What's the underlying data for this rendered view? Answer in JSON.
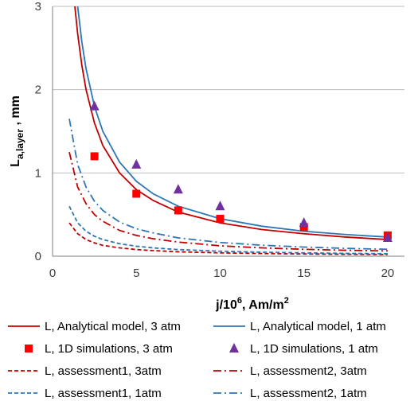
{
  "chart_data": {
    "type": "line",
    "xlabel_main": "j/10",
    "xlabel_sup": "6",
    "xlabel_rest": ", Am/m",
    "xlabel_sup2": "2",
    "ylabel_main": "L",
    "ylabel_sub": "a,layer",
    "ylabel_rest": " , mm",
    "xlim": [
      0,
      21
    ],
    "ylim": [
      0,
      3
    ],
    "xticks": [
      "0",
      "5",
      "10",
      "15",
      "20"
    ],
    "xtick_values": [
      0,
      5,
      10,
      15,
      20
    ],
    "yticks": [
      "0",
      "1",
      "2",
      "3"
    ],
    "ytick_values": [
      0,
      1,
      2,
      3
    ],
    "grid": "horizontal",
    "legend_position": "bottom",
    "series": [
      {
        "name": "L, Analytical model, 3 atm",
        "style": "solid",
        "color": "#c00000",
        "x": [
          1.33,
          1.5,
          1.75,
          2,
          2.5,
          3,
          4,
          5,
          6,
          7.5,
          10,
          12.5,
          15,
          17.5,
          20
        ],
        "y": [
          3.0,
          2.67,
          2.29,
          2.0,
          1.6,
          1.33,
          1.0,
          0.8,
          0.67,
          0.53,
          0.4,
          0.32,
          0.27,
          0.23,
          0.2
        ]
      },
      {
        "name": "L, Analytical model, 1 atm",
        "style": "solid",
        "color": "#2e75b6",
        "x": [
          1.5,
          1.75,
          2,
          2.5,
          3,
          4,
          5,
          6,
          7.5,
          10,
          12.5,
          15,
          17.5,
          20
        ],
        "y": [
          3.0,
          2.57,
          2.25,
          1.8,
          1.5,
          1.13,
          0.9,
          0.75,
          0.6,
          0.45,
          0.36,
          0.3,
          0.26,
          0.23
        ]
      },
      {
        "name": "L, 1D simulations, 3 atm",
        "style": "marker-square",
        "color": "#ff0000",
        "x": [
          2.5,
          5,
          7.5,
          10,
          15,
          20
        ],
        "y": [
          1.2,
          0.75,
          0.55,
          0.45,
          0.35,
          0.25
        ]
      },
      {
        "name": "L, 1D simulations, 1 atm",
        "style": "marker-triangle",
        "color": "#7030a0",
        "x": [
          2.5,
          5,
          7.5,
          10,
          15,
          20
        ],
        "y": [
          1.8,
          1.1,
          0.8,
          0.6,
          0.4,
          0.22
        ]
      },
      {
        "name": "L, assessment1, 3atm",
        "style": "dashed",
        "color": "#c00000",
        "x": [
          1,
          1.5,
          2,
          2.5,
          3,
          4,
          5,
          6,
          7.5,
          10,
          12.5,
          15,
          17.5,
          20
        ],
        "y": [
          0.4,
          0.27,
          0.2,
          0.16,
          0.13,
          0.1,
          0.08,
          0.067,
          0.053,
          0.04,
          0.032,
          0.027,
          0.023,
          0.02
        ]
      },
      {
        "name": "L, assessment2, 3atm",
        "style": "dashdot",
        "color": "#c00000",
        "x": [
          1,
          1.5,
          2,
          2.5,
          3,
          4,
          5,
          6,
          7.5,
          10,
          12.5,
          15,
          17.5,
          20
        ],
        "y": [
          1.25,
          0.83,
          0.63,
          0.5,
          0.42,
          0.31,
          0.25,
          0.21,
          0.17,
          0.125,
          0.1,
          0.083,
          0.071,
          0.063
        ]
      },
      {
        "name": "L, assessment1, 1atm",
        "style": "dashed",
        "color": "#2e75b6",
        "x": [
          1,
          1.5,
          2,
          2.5,
          3,
          4,
          5,
          6,
          7.5,
          10,
          12.5,
          15,
          17.5,
          20
        ],
        "y": [
          0.6,
          0.4,
          0.3,
          0.24,
          0.2,
          0.15,
          0.12,
          0.1,
          0.08,
          0.06,
          0.048,
          0.04,
          0.034,
          0.03
        ]
      },
      {
        "name": "L, assessment2, 1atm",
        "style": "dashdot",
        "color": "#2e75b6",
        "x": [
          1,
          1.5,
          2,
          2.5,
          3,
          4,
          5,
          6,
          7.5,
          10,
          12.5,
          15,
          17.5,
          20
        ],
        "y": [
          1.65,
          1.1,
          0.83,
          0.66,
          0.55,
          0.41,
          0.33,
          0.28,
          0.22,
          0.165,
          0.132,
          0.11,
          0.094,
          0.083
        ]
      }
    ]
  }
}
